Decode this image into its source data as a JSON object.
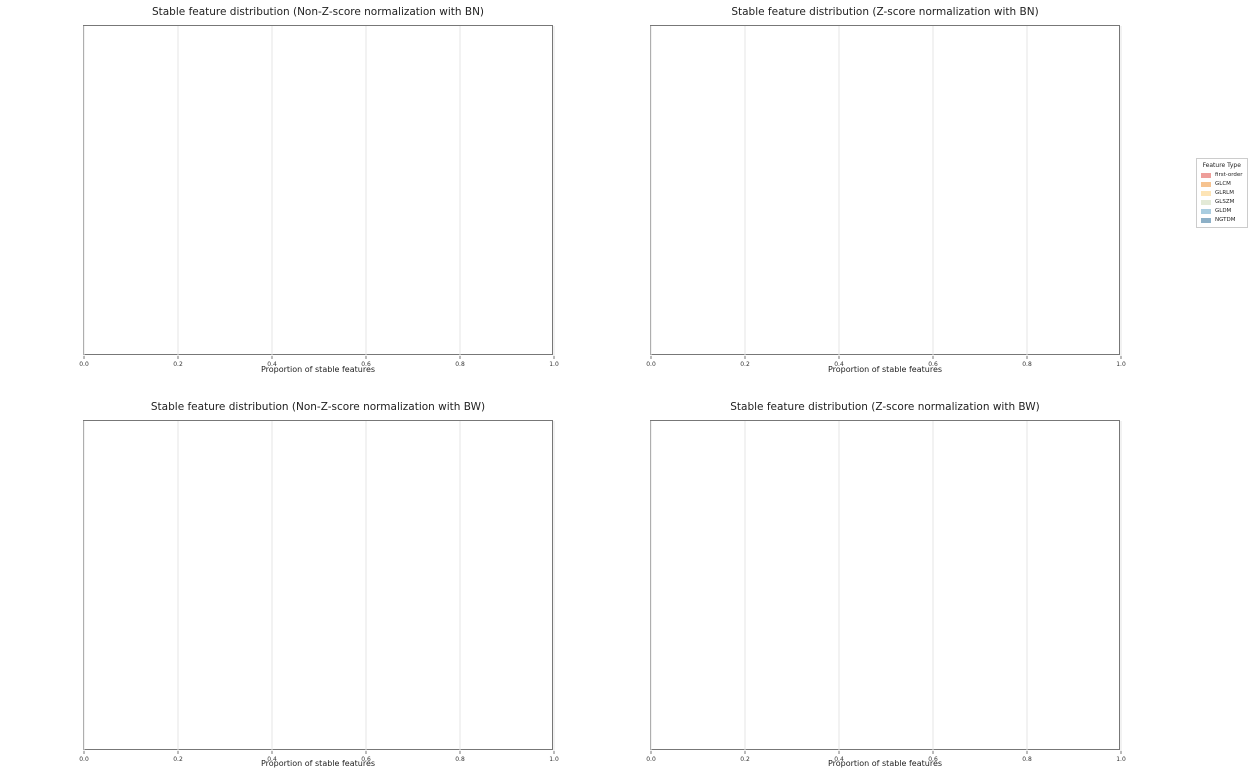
{
  "legend": {
    "title": "Feature Type",
    "items": [
      "first-order",
      "GLCM",
      "GLRLM",
      "GLSZM",
      "GLDM",
      "NGTDM"
    ]
  },
  "colors": {
    "first-order": "#ee9e9a",
    "GLCM": "#f6c390",
    "GLRLM": "#fde4b5",
    "GLSZM": "#e3ead7",
    "GLDM": "#a9cde0",
    "NGTDM": "#8db0c7"
  },
  "chart_data": [
    {
      "type": "bar",
      "orientation": "horizontal",
      "stacked": true,
      "title": "Stable feature distribution (Non-Z-score normalization with BN)",
      "xlabel": "Proportion of stable features",
      "xlim": [
        0,
        1.0
      ],
      "xticks": [
        "0.0",
        "0.2",
        "0.4",
        "0.6",
        "0.8",
        "1.0"
      ],
      "grid": "x",
      "categories": [],
      "series": [
        {
          "name": "first-order",
          "values": []
        },
        {
          "name": "GLCM",
          "values": []
        },
        {
          "name": "GLRLM",
          "values": []
        },
        {
          "name": "GLSZM",
          "values": []
        },
        {
          "name": "GLDM",
          "values": []
        },
        {
          "name": "NGTDM",
          "values": []
        }
      ]
    },
    {
      "type": "bar",
      "orientation": "horizontal",
      "stacked": true,
      "title": "Stable feature distribution (Z-score normalization with BN)",
      "xlabel": "Proportion of stable features",
      "xlim": [
        0,
        1.0
      ],
      "xticks": [
        "0.0",
        "0.2",
        "0.4",
        "0.6",
        "0.8",
        "1.0"
      ],
      "grid": "x",
      "categories": [],
      "series": [
        {
          "name": "first-order",
          "values": []
        },
        {
          "name": "GLCM",
          "values": []
        },
        {
          "name": "GLRLM",
          "values": []
        },
        {
          "name": "GLSZM",
          "values": []
        },
        {
          "name": "GLDM",
          "values": []
        },
        {
          "name": "NGTDM",
          "values": []
        }
      ]
    },
    {
      "type": "bar",
      "orientation": "horizontal",
      "stacked": true,
      "title": "Stable feature distribution (Non-Z-score normalization with BW)",
      "xlabel": "Proportion of stable features",
      "xlim": [
        0,
        1.0
      ],
      "xticks": [
        "0.0",
        "0.2",
        "0.4",
        "0.6",
        "0.8",
        "1.0"
      ],
      "grid": "x",
      "categories": [],
      "series": [
        {
          "name": "first-order",
          "values": []
        },
        {
          "name": "GLCM",
          "values": []
        },
        {
          "name": "GLRLM",
          "values": []
        },
        {
          "name": "GLSZM",
          "values": []
        },
        {
          "name": "GLDM",
          "values": []
        },
        {
          "name": "NGTDM",
          "values": []
        }
      ]
    },
    {
      "type": "bar",
      "orientation": "horizontal",
      "stacked": true,
      "title": "Stable feature distribution (Z-score normalization with BW)",
      "xlabel": "Proportion of stable features",
      "xlim": [
        0,
        1.0
      ],
      "xticks": [
        "0.0",
        "0.2",
        "0.4",
        "0.6",
        "0.8",
        "1.0"
      ],
      "grid": "x",
      "categories": [],
      "series": [
        {
          "name": "first-order",
          "values": []
        },
        {
          "name": "GLCM",
          "values": []
        },
        {
          "name": "GLRLM",
          "values": []
        },
        {
          "name": "GLSZM",
          "values": []
        },
        {
          "name": "GLDM",
          "values": []
        },
        {
          "name": "NGTDM",
          "values": []
        }
      ]
    }
  ]
}
